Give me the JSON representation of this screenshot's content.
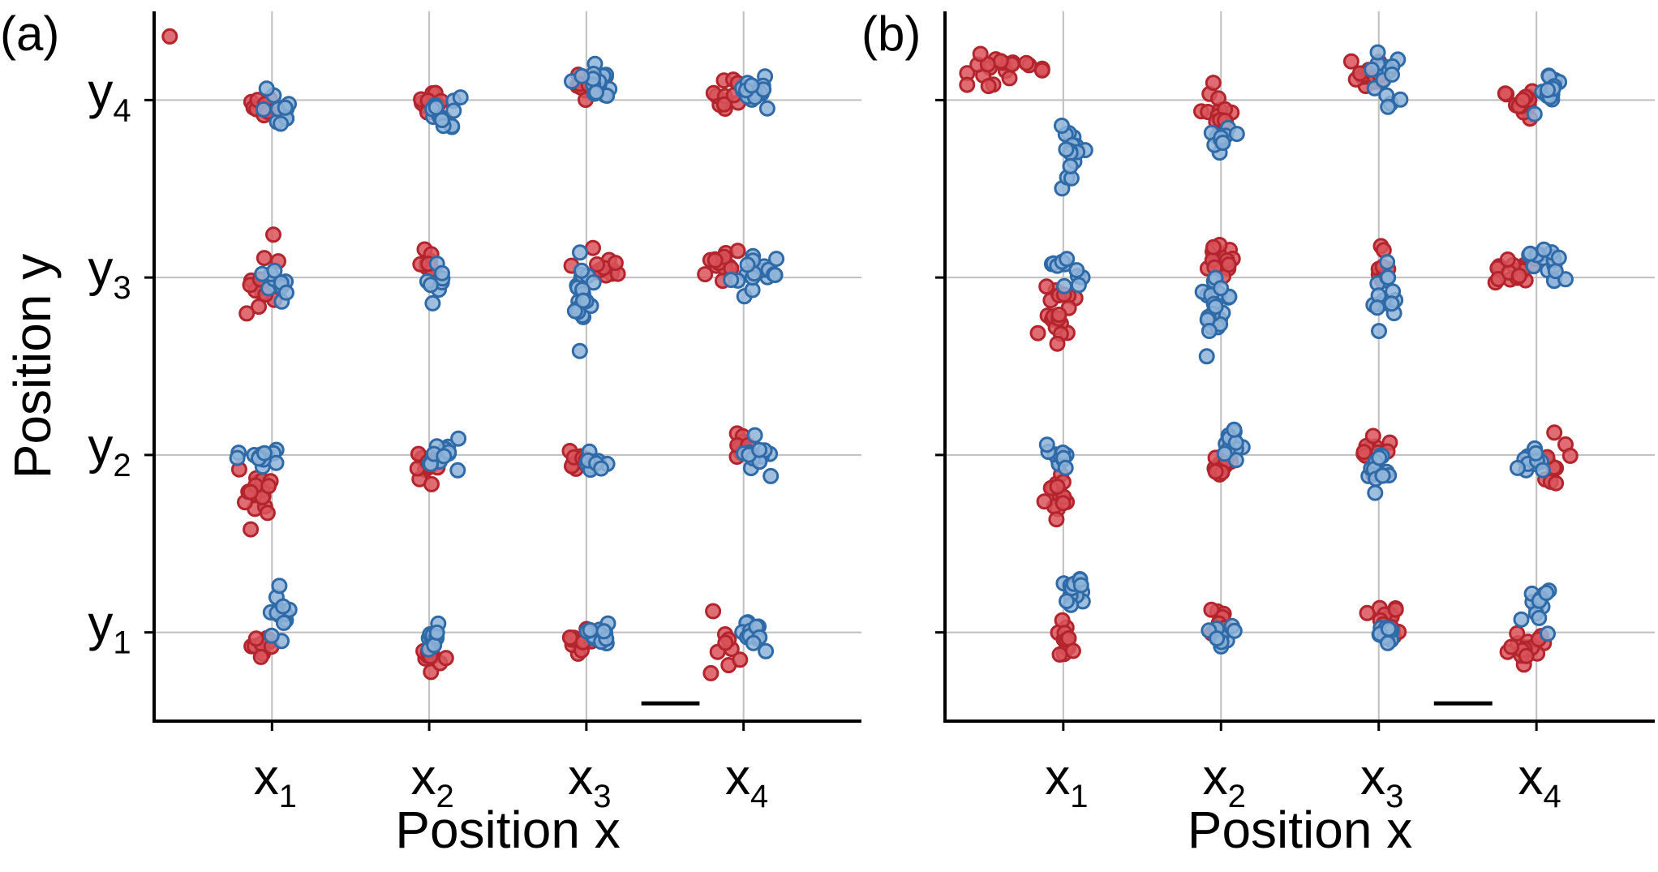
{
  "colors": {
    "red": "#d9545b",
    "red_edge": "#b3242c",
    "blue": "#8fb4d9",
    "blue_edge": "#2f6aa8"
  },
  "chart_data": [
    {
      "type": "scatter",
      "panel_label": "(a)",
      "xlabel": "Position x",
      "ylabel": "Position y",
      "x_ticks": [
        {
          "main": "x",
          "sub": "1",
          "value": 1
        },
        {
          "main": "x",
          "sub": "2",
          "value": 2
        },
        {
          "main": "x",
          "sub": "3",
          "value": 3
        },
        {
          "main": "x",
          "sub": "4",
          "value": 4
        }
      ],
      "y_ticks": [
        {
          "main": "y",
          "sub": "1",
          "value": 1
        },
        {
          "main": "y",
          "sub": "2",
          "value": 2
        },
        {
          "main": "y",
          "sub": "3",
          "value": 3
        },
        {
          "main": "y",
          "sub": "4",
          "value": 4
        }
      ],
      "show_y_tick_labels": true,
      "xlim": [
        0.25,
        4.75
      ],
      "ylim": [
        0.5,
        4.5
      ],
      "grid": true,
      "scale_bar": {
        "x_from": 3.35,
        "x_to": 3.72,
        "y": 0.6
      },
      "series": [
        {
          "color": "red",
          "clusters": [
            {
              "cx": 0.95,
              "cy": 3.97,
              "sx": 0.05,
              "sy": 0.04,
              "n": 10
            },
            {
              "cx": 0.35,
              "cy": 4.36,
              "sx": 0.01,
              "sy": 0.01,
              "n": 1
            },
            {
              "cx": 2.0,
              "cy": 3.99,
              "sx": 0.04,
              "sy": 0.03,
              "n": 10
            },
            {
              "cx": 2.98,
              "cy": 4.05,
              "sx": 0.05,
              "sy": 0.05,
              "n": 13
            },
            {
              "cx": 3.93,
              "cy": 4.02,
              "sx": 0.06,
              "sy": 0.05,
              "n": 12
            },
            {
              "cx": 0.93,
              "cy": 2.93,
              "sx": 0.05,
              "sy": 0.1,
              "n": 13
            },
            {
              "cx": 2.0,
              "cy": 3.08,
              "sx": 0.04,
              "sy": 0.05,
              "n": 10
            },
            {
              "cx": 3.1,
              "cy": 3.05,
              "sx": 0.06,
              "sy": 0.04,
              "n": 12
            },
            {
              "cx": 3.85,
              "cy": 3.07,
              "sx": 0.06,
              "sy": 0.04,
              "n": 16
            },
            {
              "cx": 0.93,
              "cy": 1.78,
              "sx": 0.06,
              "sy": 0.07,
              "n": 18
            },
            {
              "cx": 2.0,
              "cy": 1.95,
              "sx": 0.05,
              "sy": 0.07,
              "n": 12
            },
            {
              "cx": 2.93,
              "cy": 1.96,
              "sx": 0.06,
              "sy": 0.04,
              "n": 11
            },
            {
              "cx": 3.97,
              "cy": 2.07,
              "sx": 0.04,
              "sy": 0.06,
              "n": 9
            },
            {
              "cx": 0.95,
              "cy": 0.93,
              "sx": 0.04,
              "sy": 0.04,
              "n": 13
            },
            {
              "cx": 2.0,
              "cy": 0.9,
              "sx": 0.05,
              "sy": 0.05,
              "n": 12
            },
            {
              "cx": 2.95,
              "cy": 0.96,
              "sx": 0.05,
              "sy": 0.04,
              "n": 12
            },
            {
              "cx": 3.9,
              "cy": 0.95,
              "sx": 0.07,
              "sy": 0.12,
              "n": 9
            }
          ]
        },
        {
          "color": "blue",
          "clusters": [
            {
              "cx": 1.05,
              "cy": 3.96,
              "sx": 0.05,
              "sy": 0.05,
              "n": 12
            },
            {
              "cx": 2.07,
              "cy": 3.9,
              "sx": 0.06,
              "sy": 0.05,
              "n": 15
            },
            {
              "cx": 3.07,
              "cy": 4.1,
              "sx": 0.05,
              "sy": 0.04,
              "n": 16
            },
            {
              "cx": 4.07,
              "cy": 4.05,
              "sx": 0.05,
              "sy": 0.04,
              "n": 16
            },
            {
              "cx": 1.05,
              "cy": 2.98,
              "sx": 0.05,
              "sy": 0.04,
              "n": 12
            },
            {
              "cx": 2.05,
              "cy": 2.98,
              "sx": 0.04,
              "sy": 0.04,
              "n": 8
            },
            {
              "cx": 2.98,
              "cy": 2.9,
              "sx": 0.04,
              "sy": 0.1,
              "n": 20
            },
            {
              "cx": 4.08,
              "cy": 3.04,
              "sx": 0.06,
              "sy": 0.05,
              "n": 18
            },
            {
              "cx": 0.95,
              "cy": 1.99,
              "sx": 0.08,
              "sy": 0.02,
              "n": 14
            },
            {
              "cx": 2.1,
              "cy": 2.01,
              "sx": 0.06,
              "sy": 0.05,
              "n": 14
            },
            {
              "cx": 3.05,
              "cy": 1.95,
              "sx": 0.04,
              "sy": 0.03,
              "n": 11
            },
            {
              "cx": 4.05,
              "cy": 1.99,
              "sx": 0.07,
              "sy": 0.05,
              "n": 14
            },
            {
              "cx": 1.05,
              "cy": 1.1,
              "sx": 0.04,
              "sy": 0.06,
              "n": 13
            },
            {
              "cx": 2.03,
              "cy": 0.98,
              "sx": 0.04,
              "sy": 0.04,
              "n": 12
            },
            {
              "cx": 3.07,
              "cy": 1.0,
              "sx": 0.05,
              "sy": 0.04,
              "n": 13
            },
            {
              "cx": 4.07,
              "cy": 1.0,
              "sx": 0.05,
              "sy": 0.05,
              "n": 14
            }
          ]
        }
      ]
    },
    {
      "type": "scatter",
      "panel_label": "(b)",
      "xlabel": "Position x",
      "ylabel": "",
      "x_ticks": [
        {
          "main": "x",
          "sub": "1",
          "value": 1
        },
        {
          "main": "x",
          "sub": "2",
          "value": 2
        },
        {
          "main": "x",
          "sub": "3",
          "value": 3
        },
        {
          "main": "x",
          "sub": "4",
          "value": 4
        }
      ],
      "y_ticks": [
        {
          "main": "",
          "sub": "",
          "value": 1
        },
        {
          "main": "",
          "sub": "",
          "value": 2
        },
        {
          "main": "",
          "sub": "",
          "value": 3
        },
        {
          "main": "",
          "sub": "",
          "value": 4
        }
      ],
      "show_y_tick_labels": false,
      "xlim": [
        0.25,
        4.75
      ],
      "ylim": [
        0.5,
        4.5
      ],
      "grid": true,
      "scale_bar": {
        "x_from": 3.35,
        "x_to": 3.72,
        "y": 0.6
      },
      "series": [
        {
          "color": "red",
          "clusters": [
            {
              "cx": 0.63,
              "cy": 4.15,
              "sx": 0.12,
              "sy": 0.06,
              "n": 20
            },
            {
              "cx": 1.98,
              "cy": 3.95,
              "sx": 0.06,
              "sy": 0.07,
              "n": 14
            },
            {
              "cx": 2.93,
              "cy": 4.15,
              "sx": 0.05,
              "sy": 0.05,
              "n": 14
            },
            {
              "cx": 3.9,
              "cy": 3.98,
              "sx": 0.06,
              "sy": 0.04,
              "n": 16
            },
            {
              "cx": 0.98,
              "cy": 2.8,
              "sx": 0.05,
              "sy": 0.08,
              "n": 20
            },
            {
              "cx": 2.0,
              "cy": 3.08,
              "sx": 0.04,
              "sy": 0.05,
              "n": 18
            },
            {
              "cx": 3.05,
              "cy": 3.1,
              "sx": 0.04,
              "sy": 0.07,
              "n": 10
            },
            {
              "cx": 3.85,
              "cy": 3.02,
              "sx": 0.06,
              "sy": 0.04,
              "n": 16
            },
            {
              "cx": 0.97,
              "cy": 1.8,
              "sx": 0.04,
              "sy": 0.1,
              "n": 16
            },
            {
              "cx": 1.98,
              "cy": 1.95,
              "sx": 0.05,
              "sy": 0.05,
              "n": 14
            },
            {
              "cx": 2.98,
              "cy": 2.02,
              "sx": 0.05,
              "sy": 0.05,
              "n": 16
            },
            {
              "cx": 4.12,
              "cy": 2.02,
              "sx": 0.05,
              "sy": 0.12,
              "n": 10
            },
            {
              "cx": 1.0,
              "cy": 0.96,
              "sx": 0.03,
              "sy": 0.05,
              "n": 12
            },
            {
              "cx": 2.0,
              "cy": 1.05,
              "sx": 0.04,
              "sy": 0.05,
              "n": 12
            },
            {
              "cx": 3.05,
              "cy": 1.07,
              "sx": 0.05,
              "sy": 0.05,
              "n": 14
            },
            {
              "cx": 3.93,
              "cy": 0.92,
              "sx": 0.06,
              "sy": 0.05,
              "n": 18
            }
          ]
        },
        {
          "color": "blue",
          "clusters": [
            {
              "cx": 1.05,
              "cy": 3.7,
              "sx": 0.04,
              "sy": 0.1,
              "n": 16
            },
            {
              "cx": 2.0,
              "cy": 3.8,
              "sx": 0.04,
              "sy": 0.04,
              "n": 12
            },
            {
              "cx": 3.05,
              "cy": 4.12,
              "sx": 0.04,
              "sy": 0.08,
              "n": 16
            },
            {
              "cx": 4.06,
              "cy": 4.05,
              "sx": 0.05,
              "sy": 0.05,
              "n": 16
            },
            {
              "cx": 1.02,
              "cy": 3.03,
              "sx": 0.04,
              "sy": 0.05,
              "n": 12
            },
            {
              "cx": 1.97,
              "cy": 2.82,
              "sx": 0.05,
              "sy": 0.1,
              "n": 22
            },
            {
              "cx": 3.07,
              "cy": 2.9,
              "sx": 0.06,
              "sy": 0.1,
              "n": 16
            },
            {
              "cx": 4.07,
              "cy": 3.08,
              "sx": 0.06,
              "sy": 0.05,
              "n": 18
            },
            {
              "cx": 0.97,
              "cy": 1.98,
              "sx": 0.04,
              "sy": 0.04,
              "n": 12
            },
            {
              "cx": 2.07,
              "cy": 2.05,
              "sx": 0.04,
              "sy": 0.05,
              "n": 14
            },
            {
              "cx": 3.0,
              "cy": 1.88,
              "sx": 0.05,
              "sy": 0.06,
              "n": 14
            },
            {
              "cx": 3.98,
              "cy": 1.98,
              "sx": 0.05,
              "sy": 0.04,
              "n": 12
            },
            {
              "cx": 1.06,
              "cy": 1.22,
              "sx": 0.04,
              "sy": 0.06,
              "n": 14
            },
            {
              "cx": 2.0,
              "cy": 0.99,
              "sx": 0.03,
              "sy": 0.04,
              "n": 12
            },
            {
              "cx": 3.03,
              "cy": 1.0,
              "sx": 0.04,
              "sy": 0.03,
              "n": 12
            },
            {
              "cx": 4.0,
              "cy": 1.18,
              "sx": 0.04,
              "sy": 0.08,
              "n": 14
            }
          ]
        }
      ]
    }
  ]
}
